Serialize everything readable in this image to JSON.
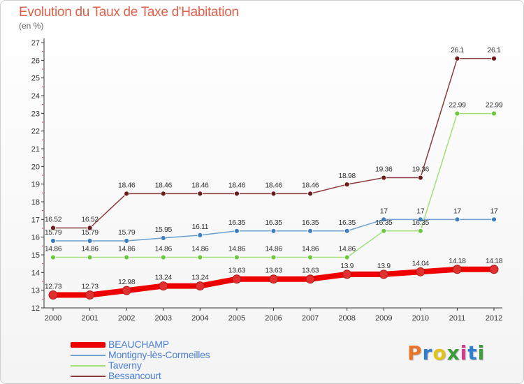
{
  "header": {
    "title": "Evolution du Taux de Taxe d'Habitation",
    "subtitle": "(en %)"
  },
  "logo": {
    "text": "Proxiti",
    "colors": [
      "#e8752a",
      "#2f7fd0",
      "#e2c21c",
      "#3a9d3a",
      "#d43a8c",
      "#2f7fd0",
      "#3a9d3a"
    ]
  },
  "chart_data": {
    "type": "line",
    "x": [
      2000,
      2001,
      2002,
      2003,
      2004,
      2005,
      2006,
      2007,
      2008,
      2009,
      2010,
      2011,
      2012
    ],
    "ylim": [
      12,
      27
    ],
    "yticks": [
      12,
      13,
      14,
      15,
      16,
      17,
      18,
      19,
      20,
      21,
      22,
      23,
      24,
      25,
      26,
      27
    ],
    "grid": false,
    "legend_position": "bottom-left",
    "series": [
      {
        "name": "BEAUCHAMP",
        "color": "#ee0000",
        "marker": "#e03030",
        "values": [
          12.73,
          12.73,
          12.98,
          13.24,
          13.24,
          13.63,
          13.63,
          13.63,
          13.9,
          13.9,
          14.04,
          14.18,
          14.18
        ],
        "labels": [
          "12.73",
          "12.73",
          "12.98",
          "13.24",
          "13.24",
          "13.63",
          "13.63",
          "13.63",
          "13.9",
          "13.9",
          "14.04",
          "14.18",
          "14.18"
        ]
      },
      {
        "name": "Montigny-lès-Cormeilles",
        "color": "#6a9fd0",
        "marker": "#3f7fc0",
        "values": [
          15.79,
          15.79,
          15.79,
          15.95,
          16.11,
          16.35,
          16.35,
          16.35,
          16.35,
          17,
          17,
          17,
          17
        ],
        "labels": [
          "15.79",
          "15.79",
          "15.79",
          "15.95",
          "16.11",
          "16.35",
          "16.35",
          "16.35",
          "16.35",
          "17",
          "17",
          "17",
          "17"
        ]
      },
      {
        "name": "Taverny",
        "color": "#9fe07a",
        "marker": "#6ec83f",
        "values": [
          14.86,
          14.86,
          14.86,
          14.86,
          14.86,
          14.86,
          14.86,
          14.86,
          14.86,
          16.35,
          16.35,
          22.99,
          22.99
        ],
        "labels": [
          "14.86",
          "14.86",
          "14.86",
          "14.86",
          "14.86",
          "14.86",
          "14.86",
          "14.86",
          "14.86",
          "16.35",
          "16.35",
          "22.99",
          "22.99"
        ]
      },
      {
        "name": "Bessancourt",
        "color": "#8a3a3a",
        "marker": "#6a1a1a",
        "values": [
          16.52,
          16.52,
          18.46,
          18.46,
          18.46,
          18.46,
          18.46,
          18.46,
          18.98,
          19.36,
          19.36,
          26.1,
          26.1
        ],
        "labels": [
          "16.52",
          "16.52",
          "18.46",
          "18.46",
          "18.46",
          "18.46",
          "18.46",
          "18.46",
          "18.98",
          "19.36",
          "19.36",
          "26.1",
          "26.1"
        ]
      }
    ]
  }
}
